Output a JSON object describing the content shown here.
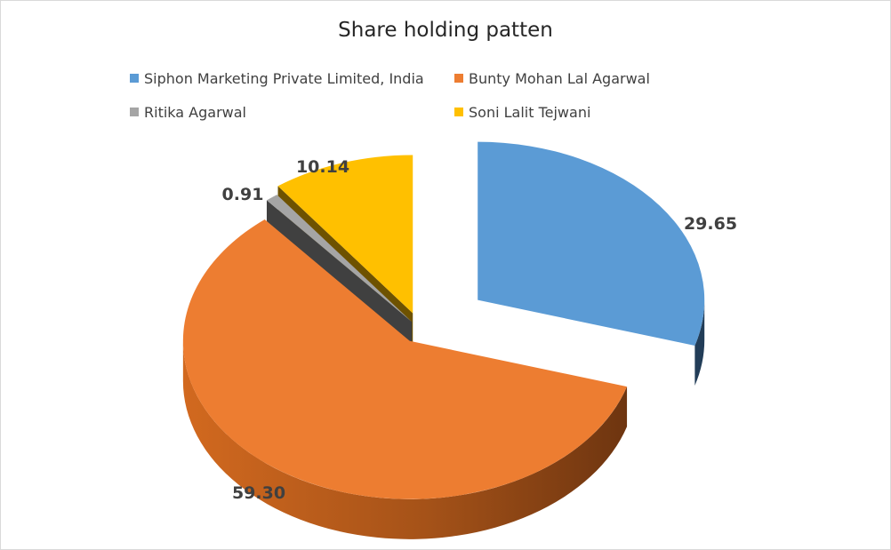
{
  "chart_data": {
    "type": "pie",
    "title": "Share holding patten",
    "legend_position": "top",
    "categories": [
      "Siphon Marketing Private Limited, India",
      "Bunty Mohan Lal Agarwal",
      "Ritika Agarwal",
      "Soni Lalit Tejwani"
    ],
    "values": [
      29.65,
      59.3,
      0.91,
      10.14
    ],
    "data_labels": [
      "29.65",
      "59.30",
      "0.91",
      "10.14"
    ],
    "colors": [
      "#5B9BD5",
      "#ED7D31",
      "#A5A5A5",
      "#FFC000"
    ],
    "side_colors": [
      "#223D58",
      "#A55218",
      "#404040",
      "#6E5200"
    ],
    "exploded": true,
    "style": "3d"
  }
}
